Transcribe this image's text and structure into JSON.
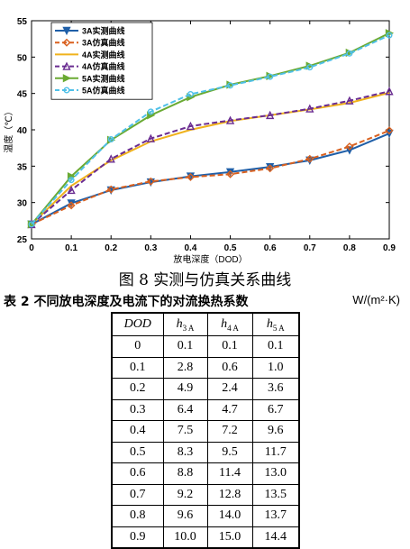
{
  "chart_data": {
    "type": "line",
    "title": "",
    "xlabel": "放电深度（DOD）",
    "ylabel": "温度（℃）",
    "xlim": [
      0,
      0.9
    ],
    "ylim": [
      25,
      55
    ],
    "xticks": [
      "0",
      "0.1",
      "0.2",
      "0.3",
      "0.4",
      "0.5",
      "0.6",
      "0.7",
      "0.8",
      "0.9"
    ],
    "yticks": [
      "25",
      "30",
      "35",
      "40",
      "45",
      "50",
      "55"
    ],
    "x": [
      0,
      0.1,
      0.2,
      0.3,
      0.4,
      0.5,
      0.6,
      0.7,
      0.8,
      0.9
    ],
    "legend_position": "top-left",
    "grid": false,
    "series": [
      {
        "name": "3A实测曲线",
        "color": "#1f5fa8",
        "dash": false,
        "marker": "triangle-down",
        "values": [
          27.0,
          29.9,
          31.7,
          32.8,
          33.6,
          34.2,
          34.9,
          35.8,
          37.2,
          39.5
        ]
      },
      {
        "name": "3A仿真曲线",
        "color": "#d9601e",
        "dash": true,
        "marker": "diamond",
        "values": [
          27.0,
          29.6,
          31.8,
          32.9,
          33.5,
          33.9,
          34.7,
          36.0,
          37.7,
          39.9
        ]
      },
      {
        "name": "4A实测曲线",
        "color": "#f0b21c",
        "dash": false,
        "marker": "none",
        "values": [
          27.0,
          32.3,
          35.8,
          38.4,
          40.0,
          41.2,
          42.0,
          42.8,
          43.7,
          45.1
        ]
      },
      {
        "name": "4A仿真曲线",
        "color": "#6a2c91",
        "dash": true,
        "marker": "triangle-up",
        "values": [
          27.0,
          31.7,
          36.0,
          38.8,
          40.5,
          41.3,
          42.0,
          42.9,
          44.0,
          45.3
        ]
      },
      {
        "name": "5A实测曲线",
        "color": "#6aaa33",
        "dash": false,
        "marker": "triangle-right",
        "values": [
          27.0,
          33.6,
          38.6,
          42.0,
          44.5,
          46.2,
          47.4,
          48.8,
          50.6,
          53.3
        ]
      },
      {
        "name": "5A仿真曲线",
        "color": "#4fc0e8",
        "dash": true,
        "marker": "circle",
        "values": [
          27.0,
          33.1,
          38.7,
          42.5,
          44.9,
          46.1,
          47.3,
          48.6,
          50.5,
          53.0
        ]
      }
    ]
  },
  "figure_caption": "图 8  实测与仿真关系曲线",
  "table": {
    "caption": "表 2  不同放电深度及电流下的对流换热系数",
    "unit": "W/(m²·K)",
    "headers": [
      {
        "main": "DOD",
        "sub": ""
      },
      {
        "main": "h",
        "sub": "3 A"
      },
      {
        "main": "h",
        "sub": "4 A"
      },
      {
        "main": "h",
        "sub": "5 A"
      }
    ],
    "rows": [
      [
        "0",
        "0.1",
        "0.1",
        "0.1"
      ],
      [
        "0.1",
        "2.8",
        "0.6",
        "1.0"
      ],
      [
        "0.2",
        "4.9",
        "2.4",
        "3.6"
      ],
      [
        "0.3",
        "6.4",
        "4.7",
        "6.7"
      ],
      [
        "0.4",
        "7.5",
        "7.2",
        "9.6"
      ],
      [
        "0.5",
        "8.3",
        "9.5",
        "11.7"
      ],
      [
        "0.6",
        "8.8",
        "11.4",
        "13.0"
      ],
      [
        "0.7",
        "9.2",
        "12.8",
        "13.5"
      ],
      [
        "0.8",
        "9.6",
        "14.0",
        "13.7"
      ],
      [
        "0.9",
        "10.0",
        "15.0",
        "14.4"
      ]
    ]
  }
}
